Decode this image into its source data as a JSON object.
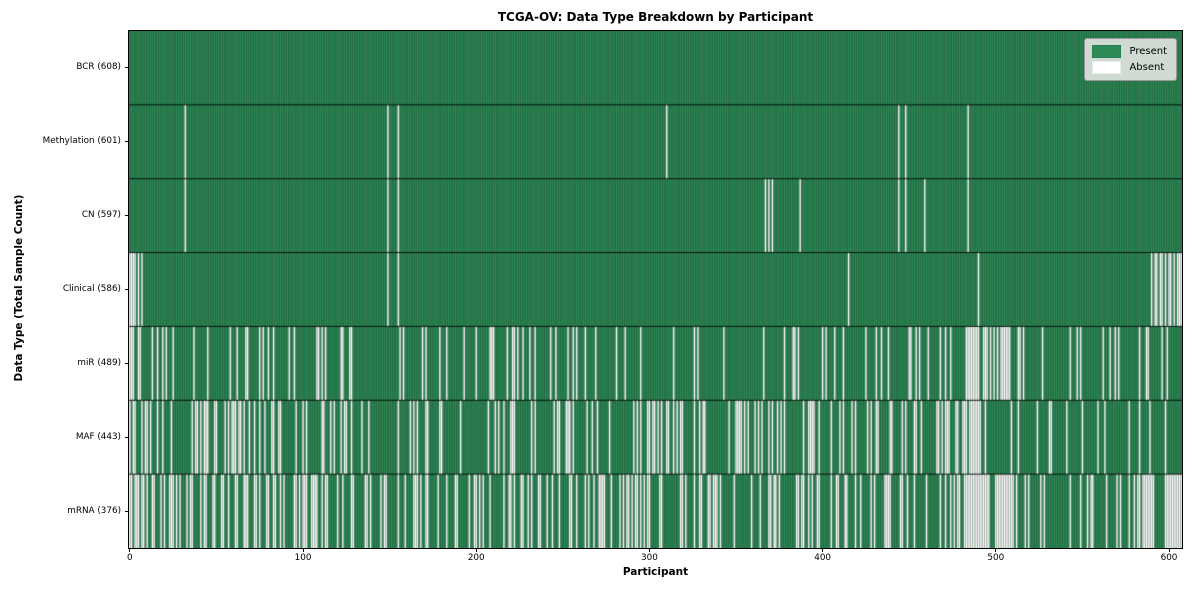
{
  "title": "TCGA-OV: Data Type Breakdown by Participant",
  "chart_data": {
    "type": "heatmap",
    "title": "TCGA-OV: Data Type Breakdown by Participant",
    "xlabel": "Participant",
    "ylabel": "Data Type (Total Sample Count)",
    "x_ticks": [
      0,
      100,
      200,
      300,
      400,
      500,
      600
    ],
    "xlim": [
      -0.5,
      607.5
    ],
    "n_participants": 608,
    "grid": false,
    "legend": {
      "position": "upper right",
      "entries": [
        {
          "label": "Present",
          "color": "#2e8b57"
        },
        {
          "label": "Absent",
          "color": "#ffffff"
        }
      ]
    },
    "colors": {
      "present": "#2e8b57",
      "absent": "#ffffff",
      "column_edge": "rgba(0,0,0,0.38)",
      "row_divider": "rgba(0,0,0,0.85)"
    },
    "rows": [
      {
        "label": "BCR (608)",
        "name": "BCR",
        "present_count": 608,
        "absent_count": 0,
        "absent_indices": []
      },
      {
        "label": "Methylation (601)",
        "name": "Methylation",
        "present_count": 601,
        "absent_count": 7,
        "absent_indices": [
          32,
          149,
          155,
          310,
          444,
          448,
          484
        ]
      },
      {
        "label": "CN (597)",
        "name": "CN",
        "present_count": 597,
        "absent_count": 11,
        "absent_indices": [
          32,
          149,
          155,
          367,
          369,
          371,
          387,
          444,
          448,
          459,
          484
        ]
      },
      {
        "label": "Clinical (586)",
        "name": "Clinical",
        "present_count": 586,
        "absent_count": 22,
        "absent_indices": [
          0,
          1,
          2,
          3,
          5,
          7,
          149,
          155,
          415,
          490,
          590,
          592,
          593,
          595,
          596,
          598,
          600,
          601,
          603,
          605,
          606,
          607
        ]
      },
      {
        "label": "miR (489)",
        "name": "miR",
        "present_count": 489,
        "absent_count": 119,
        "absent_segments": [
          {
            "start": 0,
            "end": 8,
            "count": 5
          },
          {
            "start": 9,
            "end": 130,
            "count": 25
          },
          {
            "start": 131,
            "end": 190,
            "count": 6
          },
          {
            "start": 191,
            "end": 265,
            "count": 18
          },
          {
            "start": 266,
            "end": 360,
            "count": 8
          },
          {
            "start": 361,
            "end": 460,
            "count": 17
          },
          {
            "start": 461,
            "end": 482,
            "count": 4
          },
          {
            "start": 483,
            "end": 515,
            "count": 22
          },
          {
            "start": 516,
            "end": 607,
            "count": 14
          }
        ]
      },
      {
        "label": "MAF (443)",
        "name": "MAF",
        "present_count": 443,
        "absent_count": 165,
        "absent_segments": [
          {
            "start": 0,
            "end": 10,
            "count": 6
          },
          {
            "start": 11,
            "end": 70,
            "count": 22
          },
          {
            "start": 71,
            "end": 130,
            "count": 18
          },
          {
            "start": 131,
            "end": 190,
            "count": 10
          },
          {
            "start": 191,
            "end": 230,
            "count": 8
          },
          {
            "start": 231,
            "end": 270,
            "count": 12
          },
          {
            "start": 271,
            "end": 300,
            "count": 6
          },
          {
            "start": 301,
            "end": 345,
            "count": 14
          },
          {
            "start": 346,
            "end": 395,
            "count": 20
          },
          {
            "start": 396,
            "end": 430,
            "count": 8
          },
          {
            "start": 431,
            "end": 470,
            "count": 12
          },
          {
            "start": 471,
            "end": 500,
            "count": 16
          },
          {
            "start": 501,
            "end": 545,
            "count": 6
          },
          {
            "start": 546,
            "end": 580,
            "count": 4
          },
          {
            "start": 581,
            "end": 607,
            "count": 3
          }
        ]
      },
      {
        "label": "mRNA (376)",
        "name": "mRNA",
        "present_count": 376,
        "absent_count": 232,
        "absent_segments": [
          {
            "start": 0,
            "end": 12,
            "count": 8
          },
          {
            "start": 13,
            "end": 60,
            "count": 20
          },
          {
            "start": 61,
            "end": 100,
            "count": 18
          },
          {
            "start": 101,
            "end": 140,
            "count": 16
          },
          {
            "start": 141,
            "end": 200,
            "count": 18
          },
          {
            "start": 201,
            "end": 250,
            "count": 16
          },
          {
            "start": 251,
            "end": 290,
            "count": 16
          },
          {
            "start": 291,
            "end": 330,
            "count": 14
          },
          {
            "start": 331,
            "end": 380,
            "count": 14
          },
          {
            "start": 381,
            "end": 420,
            "count": 14
          },
          {
            "start": 421,
            "end": 460,
            "count": 12
          },
          {
            "start": 461,
            "end": 485,
            "count": 10
          },
          {
            "start": 486,
            "end": 510,
            "count": 22
          },
          {
            "start": 511,
            "end": 560,
            "count": 10
          },
          {
            "start": 561,
            "end": 585,
            "count": 8
          },
          {
            "start": 586,
            "end": 607,
            "count": 16
          }
        ]
      }
    ]
  }
}
